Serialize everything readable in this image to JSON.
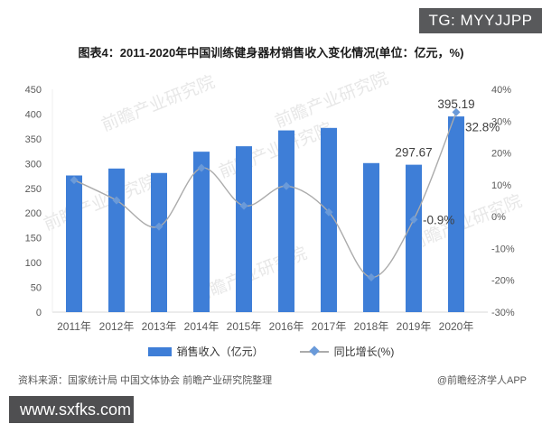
{
  "tg_badge": {
    "label": "TG: MYYJJPP",
    "bg": "#58595b",
    "color": "#ffffff"
  },
  "title": "图表4：2011-2020年中国训练健身器材销售收入变化情况(单位：亿元，%)",
  "watermark": {
    "text": "前瞻产业研究院"
  },
  "legend": {
    "bar_label": "销售收入（亿元）",
    "line_label": "同比增长(%)"
  },
  "footer": {
    "source": "资料来源：国家统计局 中国文体协会 前瞻产业研究院整理",
    "credit": "@前瞻经济学人APP",
    "site_badge": {
      "label": "www.sxfks.com",
      "bg": "#4f4f51",
      "color": "#ffffff"
    }
  },
  "chart_data": {
    "type": "bar+line",
    "title": "图表4：2011-2020年中国训练健身器材销售收入变化情况(单位：亿元，%)",
    "categories": [
      "2011年",
      "2012年",
      "2013年",
      "2014年",
      "2015年",
      "2016年",
      "2017年",
      "2018年",
      "2019年",
      "2020年"
    ],
    "series": [
      {
        "name": "销售收入（亿元）",
        "type": "bar",
        "axis": "left",
        "values": [
          276,
          290,
          281,
          324,
          335,
          367,
          372,
          301,
          297.67,
          395.19
        ],
        "color": "#3e7ed7"
      },
      {
        "name": "同比增长(%)",
        "type": "line",
        "axis": "right",
        "values": [
          11.5,
          5.1,
          -3.1,
          15.3,
          3.4,
          9.6,
          1.4,
          -19.1,
          -0.9,
          32.8
        ],
        "line_color": "#ababab",
        "marker_color": "#6a9ad9"
      }
    ],
    "left_axis": {
      "min": 0,
      "max": 450,
      "step": 50
    },
    "right_axis": {
      "min": -30,
      "max": 40,
      "step": 10,
      "suffix": "%"
    },
    "grid": false,
    "legend_position": "bottom",
    "data_labels": [
      {
        "series": 0,
        "index": 8,
        "text": "297.67",
        "placement": "above"
      },
      {
        "series": 0,
        "index": 9,
        "text": "395.19",
        "placement": "above"
      },
      {
        "series": 1,
        "index": 8,
        "text": "-0.9%",
        "placement": "right"
      },
      {
        "series": 1,
        "index": 9,
        "text": "32.8%",
        "placement": "right-low"
      }
    ],
    "tick_color": "#595959",
    "axis_line_color": "#d9d9d9"
  }
}
